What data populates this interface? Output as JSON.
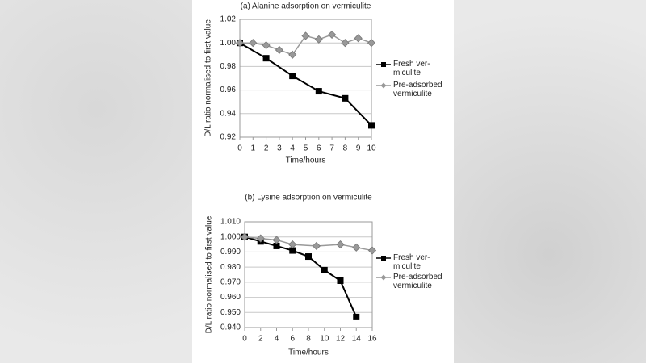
{
  "chart_data": [
    {
      "type": "line",
      "title": "(a) Alanine adsorption on vermiculite",
      "x_label": "Time/hours",
      "y_label": "D/L ratio normalised to first value",
      "xlim": [
        0,
        10
      ],
      "xticks": [
        0,
        1,
        2,
        3,
        4,
        5,
        6,
        7,
        8,
        9,
        10
      ],
      "ylim": [
        0.92,
        1.02
      ],
      "yticks": [
        0.92,
        0.94,
        0.96,
        0.98,
        {
          "value": 1,
          "label": "1.00"
        },
        1.02
      ],
      "grid": true,
      "series": [
        {
          "name": "Fresh ver-\nmiculite",
          "color": "#000000",
          "marker": "square",
          "x": [
            0,
            2,
            4,
            6,
            8,
            10
          ],
          "values": [
            1.0,
            0.987,
            0.972,
            0.959,
            0.953,
            0.93
          ]
        },
        {
          "name": "Pre-adsorbed\nvermiculite",
          "color": "#999999",
          "marker": "diamond",
          "x": [
            0,
            1,
            2,
            3,
            4,
            5,
            6,
            7,
            8,
            9,
            10
          ],
          "values": [
            1.0,
            1.0,
            0.998,
            0.994,
            0.99,
            1.006,
            1.003,
            1.007,
            1.0,
            1.004,
            1.0
          ]
        }
      ]
    },
    {
      "type": "line",
      "title": "(b) Lysine adsorption on vermiculite",
      "x_label": "Time/hours",
      "y_label": "D/L ratio normalised to first value",
      "xlim": [
        0,
        16
      ],
      "xticks": [
        0,
        2,
        4,
        6,
        8,
        10,
        12,
        14,
        16
      ],
      "ylim": [
        0.94,
        1.01
      ],
      "yticks": [
        {
          "value": 0.94,
          "label": "0.940"
        },
        {
          "value": 0.95,
          "label": "0.950"
        },
        {
          "value": 0.96,
          "label": "0.960"
        },
        {
          "value": 0.97,
          "label": "0.970"
        },
        {
          "value": 0.98,
          "label": "0.980"
        },
        {
          "value": 0.99,
          "label": "0.990"
        },
        {
          "value": 1,
          "label": "1.000"
        },
        {
          "value": 1.01,
          "label": "1.010"
        }
      ],
      "grid": true,
      "series": [
        {
          "name": "Fresh ver-\nmiculite",
          "color": "#000000",
          "marker": "square",
          "x": [
            0,
            2,
            4,
            6,
            8,
            10,
            12,
            14
          ],
          "values": [
            1.0,
            0.997,
            0.994,
            0.991,
            0.987,
            0.978,
            0.971,
            0.947
          ]
        },
        {
          "name": "Pre-adsorbed\nvermiculite",
          "color": "#999999",
          "marker": "diamond",
          "x": [
            0,
            2,
            4,
            6,
            9,
            12,
            14,
            16
          ],
          "values": [
            1.0,
            0.999,
            0.998,
            0.995,
            0.994,
            0.995,
            0.993,
            0.991
          ]
        }
      ]
    }
  ]
}
